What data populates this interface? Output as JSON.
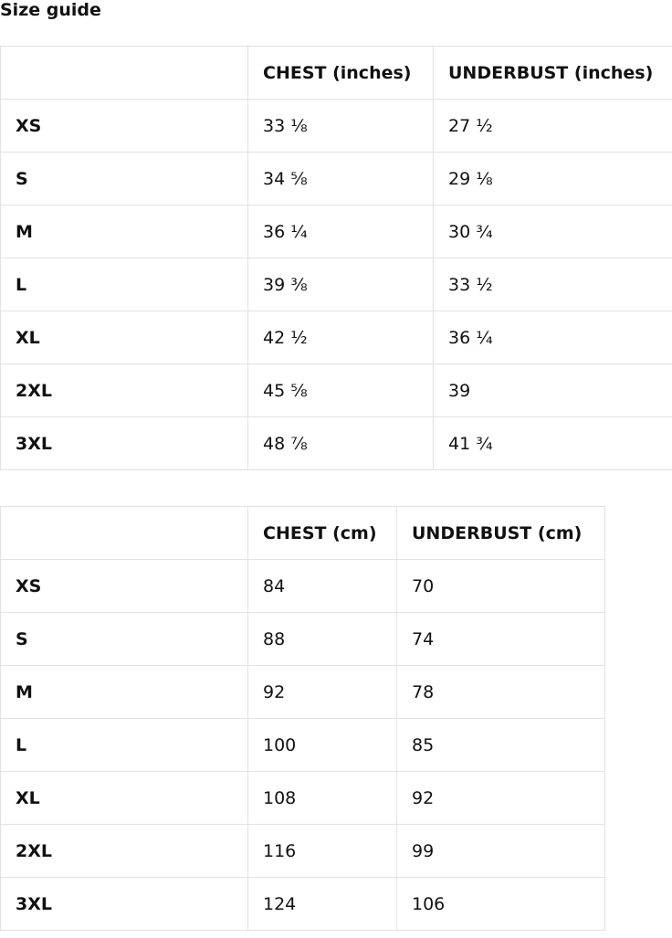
{
  "title": "Size guide",
  "inches_table": {
    "headers": [
      "",
      "CHEST (inches)",
      "UNDERBUST (inches)"
    ],
    "rows": [
      [
        "XS",
        "33 ⅛",
        "27 ½"
      ],
      [
        "S",
        "34 ⅝",
        "29 ⅛"
      ],
      [
        "M",
        "36 ¼",
        "30 ¾"
      ],
      [
        "L",
        "39 ⅜",
        "33 ½"
      ],
      [
        "XL",
        "42 ½",
        "36 ¼"
      ],
      [
        "2XL",
        "45 ⅝",
        "39"
      ],
      [
        "3XL",
        "48 ⅞",
        "41 ¾"
      ]
    ]
  },
  "cm_table": {
    "headers": [
      "",
      "CHEST (cm)",
      "UNDERBUST (cm)"
    ],
    "rows": [
      [
        "XS",
        "84",
        "70"
      ],
      [
        "S",
        "88",
        "74"
      ],
      [
        "M",
        "92",
        "78"
      ],
      [
        "L",
        "100",
        "85"
      ],
      [
        "XL",
        "108",
        "92"
      ],
      [
        "2XL",
        "116",
        "99"
      ],
      [
        "3XL",
        "124",
        "106"
      ]
    ]
  }
}
